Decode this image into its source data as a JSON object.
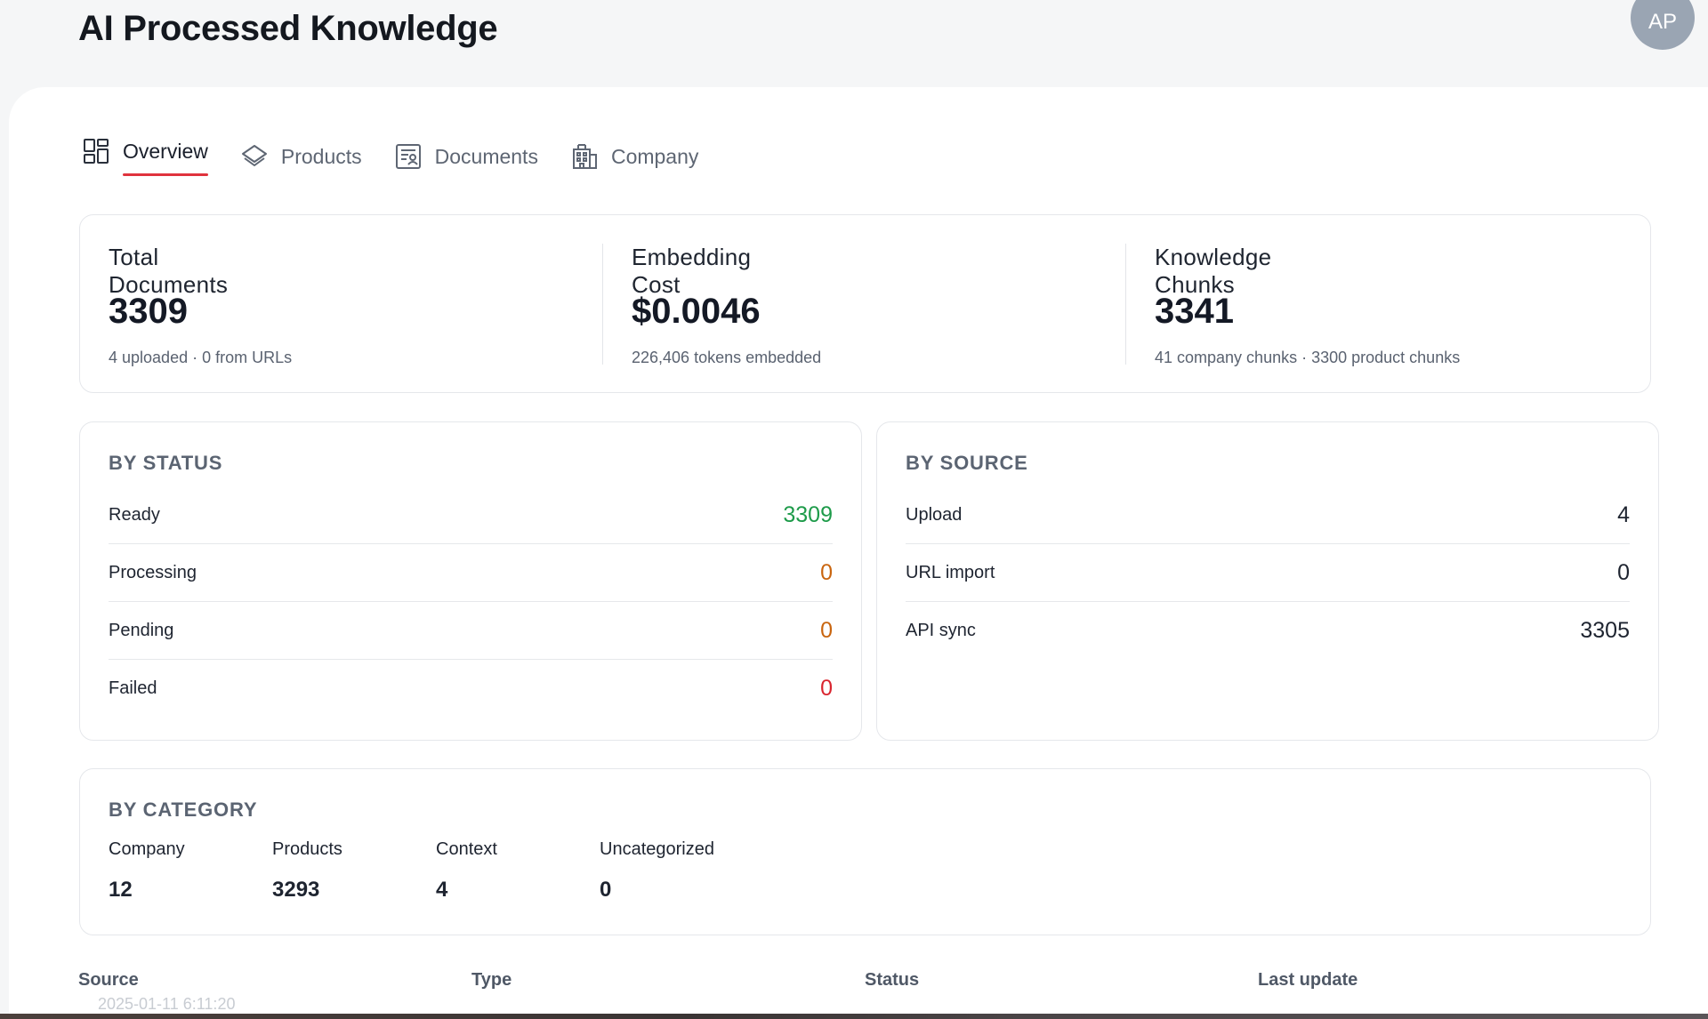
{
  "header": {
    "title": "AI Processed Knowledge",
    "avatar_initials": "AP"
  },
  "tabs": [
    {
      "label": "Overview",
      "icon": "grid-icon",
      "active": true
    },
    {
      "label": "Products",
      "icon": "layers-icon",
      "active": false
    },
    {
      "label": "Documents",
      "icon": "document-icon",
      "active": false
    },
    {
      "label": "Company",
      "icon": "building-icon",
      "active": false
    }
  ],
  "summary": {
    "total_documents": {
      "label": "Total Documents",
      "value": "3309",
      "sub": "4 uploaded · 0 from URLs"
    },
    "embedding_cost": {
      "label": "Embedding Cost",
      "value": "$0.0046",
      "sub": "226,406 tokens embedded"
    },
    "knowledge_chunks": {
      "label": "Knowledge Chunks",
      "value": "3341",
      "sub": "41 company chunks · 3300 product chunks"
    }
  },
  "by_status": {
    "title": "BY STATUS",
    "rows": [
      {
        "label": "Ready",
        "value": "3309",
        "color": "#1e9b4a"
      },
      {
        "label": "Processing",
        "value": "0",
        "color": "#c9650f"
      },
      {
        "label": "Pending",
        "value": "0",
        "color": "#c9650f"
      },
      {
        "label": "Failed",
        "value": "0",
        "color": "#d9252f"
      }
    ]
  },
  "by_source": {
    "title": "BY SOURCE",
    "rows": [
      {
        "label": "Upload",
        "value": "4"
      },
      {
        "label": "URL import",
        "value": "0"
      },
      {
        "label": "API sync",
        "value": "3305"
      }
    ]
  },
  "by_category": {
    "title": "BY CATEGORY",
    "items": [
      {
        "label": "Company",
        "value": "12"
      },
      {
        "label": "Products",
        "value": "3293"
      },
      {
        "label": "Context",
        "value": "4"
      },
      {
        "label": "Uncategorized",
        "value": "0"
      }
    ]
  },
  "table": {
    "columns": [
      "Source",
      "Type",
      "Status",
      "Last update"
    ],
    "partial_row_text": "2025-01-11 6:11:20"
  },
  "colors": {
    "tab_active_underline": "#e0333d",
    "ready": "#1e9b4a",
    "processing": "#c9650f",
    "failed": "#d9252f"
  }
}
